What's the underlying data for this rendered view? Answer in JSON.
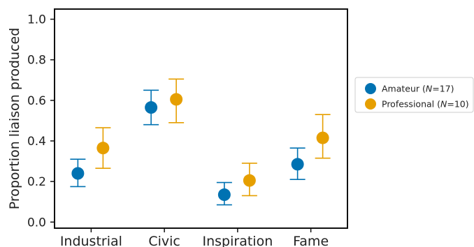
{
  "chart_data": {
    "type": "scatter",
    "ylabel": "Proportion liaison produced",
    "xlabel": "",
    "ylim": [
      -0.03,
      1.05
    ],
    "yticks": [
      "0.0",
      "0.2",
      "0.4",
      "0.6",
      "0.8",
      "1.0"
    ],
    "categories": [
      "Industrial",
      "Civic",
      "Inspiration",
      "Fame"
    ],
    "grid": false,
    "legend_position": "right",
    "series": [
      {
        "name": "Amateur (N=17)",
        "legend_prefix": "Amateur (",
        "legend_italic": "N",
        "legend_suffix": "=17)",
        "color": "#0072B2",
        "values": [
          0.24,
          0.565,
          0.135,
          0.285
        ],
        "lower": [
          0.175,
          0.48,
          0.085,
          0.21
        ],
        "upper": [
          0.31,
          0.65,
          0.195,
          0.365
        ]
      },
      {
        "name": "Professional (N=10)",
        "legend_prefix": "Professional (",
        "legend_italic": "N",
        "legend_suffix": "=10)",
        "color": "#E69F00",
        "values": [
          0.365,
          0.605,
          0.205,
          0.415
        ],
        "lower": [
          0.265,
          0.49,
          0.13,
          0.315
        ],
        "upper": [
          0.465,
          0.705,
          0.29,
          0.53
        ]
      }
    ]
  }
}
